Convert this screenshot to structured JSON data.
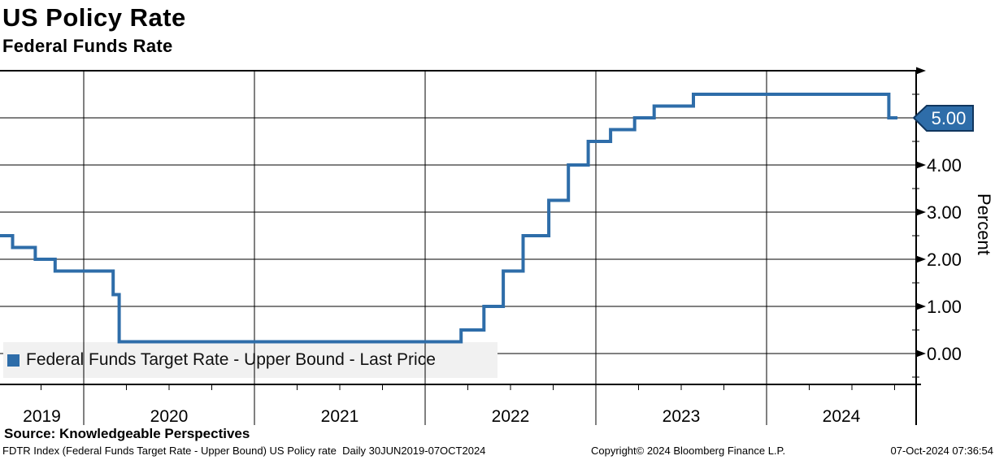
{
  "header": {
    "title": "US Policy Rate",
    "subtitle": "Federal Funds Rate"
  },
  "chart_data": {
    "type": "line",
    "line_style": "step-after",
    "title": "US Policy Rate",
    "subtitle": "Federal Funds Rate",
    "ylabel": "Percent",
    "ylabel_side": "right",
    "grid": true,
    "legend_position": "bottom-left",
    "x_axis": {
      "range_decimal_years": [
        2019.5,
        2024.88
      ],
      "year_gridlines": [
        2020,
        2021,
        2022,
        2023,
        2024
      ],
      "year_labels": [
        "2019",
        "2020",
        "2021",
        "2022",
        "2023",
        "2024"
      ],
      "minor_tick_interval_years": 0.25
    },
    "y_axis": {
      "range": [
        -0.67,
        6.0
      ],
      "majors": [
        {
          "v": 0,
          "label": "0.00"
        },
        {
          "v": 1,
          "label": "1.00"
        },
        {
          "v": 2,
          "label": "2.00"
        },
        {
          "v": 3,
          "label": "3.00"
        },
        {
          "v": 4,
          "label": "4.00"
        },
        {
          "v": 5,
          "label": ""
        },
        {
          "v": 6,
          "label": ""
        }
      ],
      "minors": [
        -0.5,
        0.5,
        1.5,
        2.5,
        3.5,
        4.5,
        5.5
      ]
    },
    "series": [
      {
        "name": "Federal Funds Target Rate - Upper Bound - Last Price",
        "color": "#2e6da9",
        "units": "percent",
        "points": [
          [
            "2019-06-30",
            2.5
          ],
          [
            "2019-08-01",
            2.25
          ],
          [
            "2019-09-19",
            2.0
          ],
          [
            "2019-10-31",
            1.75
          ],
          [
            "2020-03-03",
            1.25
          ],
          [
            "2020-03-16",
            0.25
          ],
          [
            "2022-03-17",
            0.5
          ],
          [
            "2022-05-05",
            1.0
          ],
          [
            "2022-06-16",
            1.75
          ],
          [
            "2022-07-28",
            2.5
          ],
          [
            "2022-09-22",
            3.25
          ],
          [
            "2022-11-03",
            4.0
          ],
          [
            "2022-12-15",
            4.5
          ],
          [
            "2023-02-02",
            4.75
          ],
          [
            "2023-03-23",
            5.0
          ],
          [
            "2023-05-04",
            5.25
          ],
          [
            "2023-07-27",
            5.5
          ],
          [
            "2024-09-19",
            5.0
          ],
          [
            "2024-10-07",
            5.0
          ]
        ]
      }
    ],
    "last_price": {
      "value": 5.0,
      "label": "5.00"
    }
  },
  "legend": {
    "items": [
      {
        "label": "Federal Funds Target Rate - Upper Bound - Last Price",
        "color": "#2e6da9"
      }
    ]
  },
  "colors": {
    "accent_blue": "#2e6da9",
    "tag_border": "#10365e",
    "legend_bg": "#f1f1f1",
    "grid": "#000000",
    "text": "#000000"
  },
  "footer": {
    "source": "Source: Knowledgeable Perspectives",
    "left": "FDTR Index (Federal Funds Target Rate - Upper Bound) US Policy rate  Daily 30JUN2019-07OCT2024",
    "center": "Copyright© 2024 Bloomberg Finance L.P.",
    "right": "07-Oct-2024 07:36:54"
  }
}
